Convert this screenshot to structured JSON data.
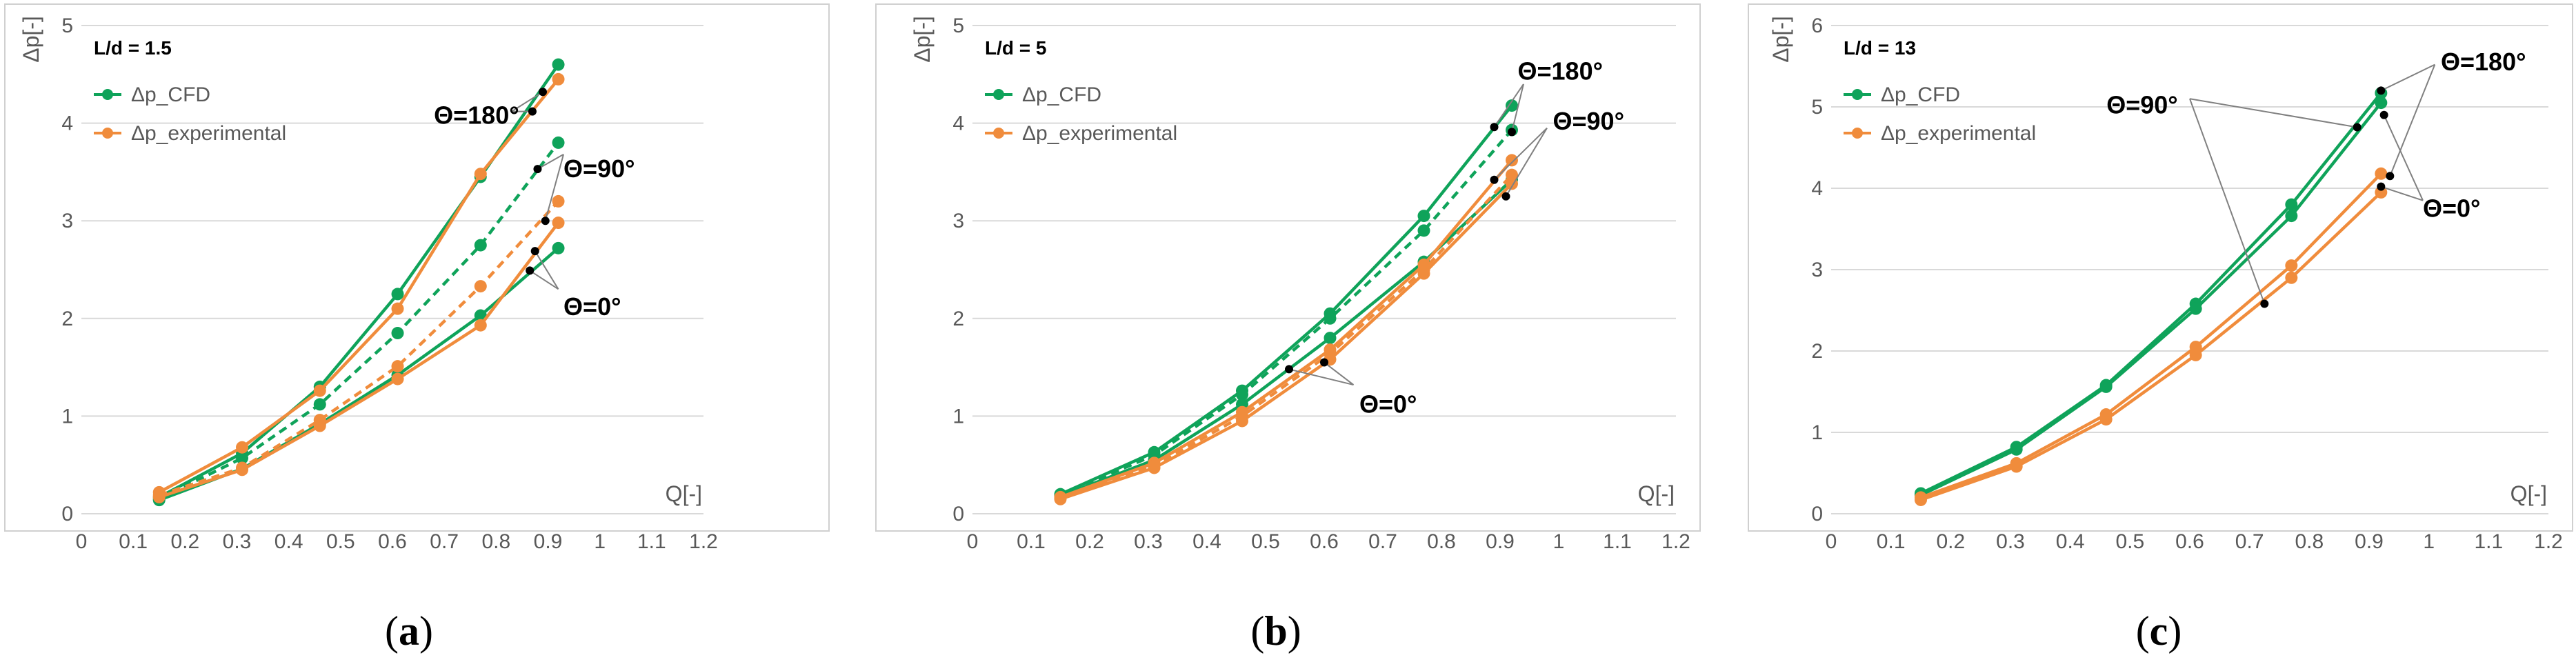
{
  "colors": {
    "cfd": "#0FA35A",
    "exp": "#F08C3C",
    "grid": "#D9D9D9",
    "frame": "#D0D0D0",
    "leader": "#808080"
  },
  "chart_data": [
    {
      "type": "line",
      "panel_label": {
        "open": "(",
        "letter": "a",
        "close": ")"
      },
      "ld_label": "L/d = 1.5",
      "xlabel": "Q[-]",
      "ylabel": "Δp[-]",
      "xlim": [
        0,
        1.2
      ],
      "ylim": [
        0,
        5
      ],
      "xticks": [
        "0",
        "0.1",
        "0.2",
        "0.3",
        "0.4",
        "0.5",
        "0.6",
        "0.7",
        "0.8",
        "0.9",
        "1",
        "1.1",
        "1.2"
      ],
      "yticks": [
        "0",
        "1",
        "2",
        "3",
        "4",
        "5"
      ],
      "legend": [
        "Δp_CFD",
        "Δp_experimental"
      ],
      "series": [
        {
          "name": "Δp_CFD Θ=180°",
          "group": "cfd",
          "dash": false,
          "x": [
            0.15,
            0.31,
            0.46,
            0.61,
            0.77,
            0.92
          ],
          "y": [
            0.17,
            0.62,
            1.3,
            2.25,
            3.45,
            4.6
          ]
        },
        {
          "name": "Δp_CFD Θ=90°",
          "group": "cfd",
          "dash": true,
          "x": [
            0.15,
            0.31,
            0.46,
            0.61,
            0.77,
            0.92
          ],
          "y": [
            0.15,
            0.57,
            1.12,
            1.85,
            2.75,
            3.8
          ]
        },
        {
          "name": "Δp_CFD Θ=0°",
          "group": "cfd",
          "dash": false,
          "x": [
            0.15,
            0.31,
            0.46,
            0.61,
            0.77,
            0.92
          ],
          "y": [
            0.14,
            0.46,
            0.92,
            1.42,
            2.03,
            2.72
          ]
        },
        {
          "name": "Δp_exp Θ=180°",
          "group": "exp",
          "dash": false,
          "x": [
            0.15,
            0.31,
            0.46,
            0.61,
            0.77,
            0.92
          ],
          "y": [
            0.22,
            0.68,
            1.26,
            2.1,
            3.48,
            4.45
          ]
        },
        {
          "name": "Δp_exp Θ=90°",
          "group": "exp",
          "dash": true,
          "x": [
            0.15,
            0.31,
            0.46,
            0.61,
            0.77,
            0.92
          ],
          "y": [
            0.19,
            0.47,
            0.96,
            1.51,
            2.33,
            3.2
          ]
        },
        {
          "name": "Δp_exp Θ=0°",
          "group": "exp",
          "dash": false,
          "x": [
            0.15,
            0.31,
            0.46,
            0.61,
            0.77,
            0.92
          ],
          "y": [
            0.17,
            0.45,
            0.9,
            1.38,
            1.93,
            2.98
          ]
        }
      ],
      "annotations": [
        {
          "text": "Θ=180°",
          "tx": 0.68,
          "ty": 4.08,
          "anchor": "start",
          "lines": [
            [
              0.83,
              4.12,
              0.89,
              4.32
            ],
            [
              0.83,
              4.12,
              0.87,
              4.12
            ]
          ],
          "dots": [
            [
              0.89,
              4.32
            ],
            [
              0.87,
              4.12
            ]
          ]
        },
        {
          "text": "Θ=90°",
          "tx": 0.93,
          "ty": 3.53,
          "anchor": "start",
          "lines": [
            [
              0.93,
              3.68,
              0.88,
              3.53
            ],
            [
              0.93,
              3.68,
              0.895,
              3.0
            ]
          ],
          "dots": [
            [
              0.88,
              3.53
            ],
            [
              0.895,
              3.0
            ]
          ]
        },
        {
          "text": "Θ=0°",
          "tx": 0.93,
          "ty": 2.12,
          "anchor": "start",
          "lines": [
            [
              0.92,
              2.3,
              0.875,
              2.69
            ],
            [
              0.92,
              2.3,
              0.865,
              2.49
            ]
          ],
          "dots": [
            [
              0.875,
              2.69
            ],
            [
              0.865,
              2.49
            ]
          ]
        }
      ]
    },
    {
      "type": "line",
      "panel_label": {
        "open": "(",
        "letter": "b",
        "close": ")"
      },
      "ld_label": "L/d = 5",
      "xlabel": "Q[-]",
      "ylabel": "Δp[-]",
      "xlim": [
        0,
        1.2
      ],
      "ylim": [
        0,
        5
      ],
      "xticks": [
        "0",
        "0.1",
        "0.2",
        "0.3",
        "0.4",
        "0.5",
        "0.6",
        "0.7",
        "0.8",
        "0.9",
        "1",
        "1.1",
        "1.2"
      ],
      "yticks": [
        "0",
        "1",
        "2",
        "3",
        "4",
        "5"
      ],
      "legend": [
        "Δp_CFD",
        "Δp_experimental"
      ],
      "series": [
        {
          "name": "Δp_CFD Θ=180°",
          "group": "cfd",
          "dash": false,
          "x": [
            0.15,
            0.31,
            0.46,
            0.61,
            0.77,
            0.92
          ],
          "y": [
            0.2,
            0.63,
            1.26,
            2.05,
            3.05,
            4.18
          ]
        },
        {
          "name": "Δp_CFD Θ=90°",
          "group": "cfd",
          "dash": true,
          "x": [
            0.15,
            0.31,
            0.46,
            0.61,
            0.77,
            0.92
          ],
          "y": [
            0.19,
            0.6,
            1.22,
            2.0,
            2.9,
            3.93
          ]
        },
        {
          "name": "Δp_CFD Θ=0°",
          "group": "cfd",
          "dash": false,
          "x": [
            0.15,
            0.31,
            0.46,
            0.61,
            0.77,
            0.92
          ],
          "y": [
            0.18,
            0.55,
            1.12,
            1.8,
            2.58,
            3.42
          ]
        },
        {
          "name": "Δp_exp Θ=180°",
          "group": "exp",
          "dash": false,
          "x": [
            0.15,
            0.31,
            0.46,
            0.61,
            0.77,
            0.92
          ],
          "y": [
            0.17,
            0.52,
            1.04,
            1.68,
            2.55,
            3.62
          ]
        },
        {
          "name": "Δp_exp Θ=90°",
          "group": "exp",
          "dash": true,
          "x": [
            0.15,
            0.31,
            0.46,
            0.61,
            0.77,
            0.92
          ],
          "y": [
            0.16,
            0.49,
            1.0,
            1.64,
            2.5,
            3.47
          ]
        },
        {
          "name": "Δp_exp Θ=0°",
          "group": "exp",
          "dash": false,
          "x": [
            0.15,
            0.31,
            0.46,
            0.61,
            0.77,
            0.92
          ],
          "y": [
            0.15,
            0.47,
            0.95,
            1.58,
            2.46,
            3.38
          ]
        }
      ],
      "annotations": [
        {
          "text": "Θ=180°",
          "tx": 0.93,
          "ty": 4.53,
          "anchor": "start",
          "lines": [
            [
              0.94,
              4.4,
              0.89,
              3.96
            ],
            [
              0.94,
              4.4,
              0.92,
              3.91
            ]
          ],
          "dots": [
            [
              0.89,
              3.96
            ],
            [
              0.92,
              3.91
            ]
          ]
        },
        {
          "text": "Θ=90°",
          "tx": 0.99,
          "ty": 4.02,
          "anchor": "start",
          "lines": [
            [
              0.98,
              3.95,
              0.89,
              3.42
            ],
            [
              0.98,
              3.95,
              0.91,
              3.25
            ]
          ],
          "dots": [
            [
              0.89,
              3.42
            ],
            [
              0.91,
              3.25
            ]
          ]
        },
        {
          "text": "Θ=0°",
          "tx": 0.66,
          "ty": 1.12,
          "anchor": "start",
          "lines": [
            [
              0.65,
              1.32,
              0.54,
              1.48
            ],
            [
              0.65,
              1.32,
              0.6,
              1.55
            ]
          ],
          "dots": [
            [
              0.54,
              1.48
            ],
            [
              0.6,
              1.55
            ]
          ]
        }
      ]
    },
    {
      "type": "line",
      "panel_label": {
        "open": "(",
        "letter": "c",
        "close": ")"
      },
      "ld_label": "L/d = 13",
      "xlabel": "Q[-]",
      "ylabel": "Δp[-]",
      "xlim": [
        0,
        1.2
      ],
      "ylim": [
        0,
        6
      ],
      "xticks": [
        "0",
        "0.1",
        "0.2",
        "0.3",
        "0.4",
        "0.5",
        "0.6",
        "0.7",
        "0.8",
        "0.9",
        "1",
        "1.1",
        "1.2"
      ],
      "yticks": [
        "0",
        "1",
        "2",
        "3",
        "4",
        "5",
        "6"
      ],
      "legend": [
        "Δp_CFD",
        "Δp_experimental"
      ],
      "series": [
        {
          "name": "Δp_CFD Θ=180°",
          "group": "cfd",
          "dash": false,
          "x": [
            0.15,
            0.31,
            0.46,
            0.61,
            0.77,
            0.92
          ],
          "y": [
            0.25,
            0.82,
            1.58,
            2.58,
            3.8,
            5.17
          ]
        },
        {
          "name": "Δp_CFD Θ=0°",
          "group": "cfd",
          "dash": false,
          "x": [
            0.15,
            0.31,
            0.46,
            0.61,
            0.77,
            0.92
          ],
          "y": [
            0.23,
            0.79,
            1.56,
            2.52,
            3.66,
            5.05
          ]
        },
        {
          "name": "Δp_exp Θ=180°",
          "group": "exp",
          "dash": false,
          "x": [
            0.15,
            0.31,
            0.46,
            0.61,
            0.77,
            0.92
          ],
          "y": [
            0.2,
            0.62,
            1.22,
            2.05,
            3.05,
            4.18
          ]
        },
        {
          "name": "Δp_exp Θ=0°",
          "group": "exp",
          "dash": false,
          "x": [
            0.15,
            0.31,
            0.46,
            0.61,
            0.77,
            0.92
          ],
          "y": [
            0.17,
            0.58,
            1.16,
            1.95,
            2.9,
            3.95
          ]
        }
      ],
      "annotations": [
        {
          "text": "Θ=180°",
          "tx": 1.02,
          "ty": 5.55,
          "anchor": "start",
          "lines": [
            [
              1.01,
              5.52,
              0.92,
              5.2
            ],
            [
              1.01,
              5.52,
              0.935,
              4.15
            ]
          ],
          "dots": [
            [
              0.92,
              5.2
            ],
            [
              0.935,
              4.15
            ]
          ]
        },
        {
          "text": "Θ=90°",
          "tx": 0.58,
          "ty": 5.02,
          "anchor": "end",
          "lines": [
            [
              0.6,
              5.1,
              0.88,
              4.75
            ],
            [
              0.6,
              5.1,
              0.725,
              2.58
            ]
          ],
          "dots": [
            [
              0.88,
              4.75
            ],
            [
              0.725,
              2.58
            ]
          ]
        },
        {
          "text": "Θ=0°",
          "tx": 0.99,
          "ty": 3.75,
          "anchor": "start",
          "lines": [
            [
              0.99,
              3.85,
              0.925,
              4.9
            ],
            [
              0.99,
              3.85,
              0.92,
              4.02
            ]
          ],
          "dots": [
            [
              0.925,
              4.9
            ],
            [
              0.92,
              4.02
            ]
          ]
        }
      ]
    }
  ]
}
